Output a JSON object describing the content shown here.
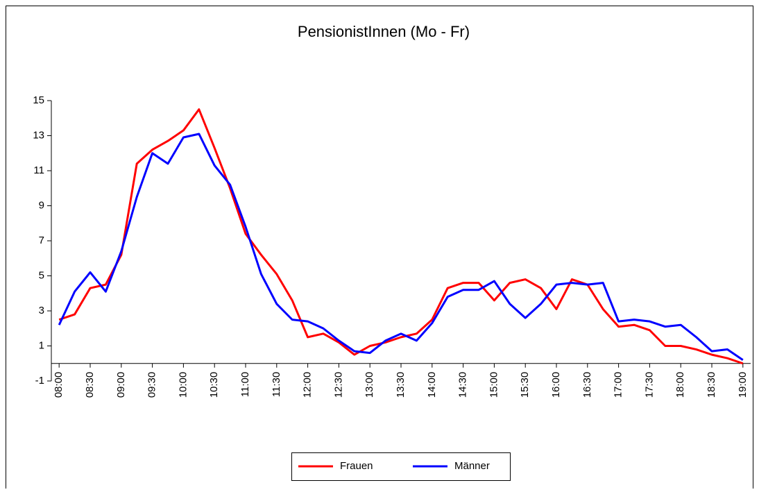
{
  "chart_data": {
    "type": "line",
    "title": "PensionistInnen (Mo - Fr)",
    "categories": [
      "08:00",
      null,
      "08:30",
      null,
      "09:00",
      null,
      "09:30",
      null,
      "10:00",
      null,
      "10:30",
      null,
      "11:00",
      null,
      "11:30",
      null,
      "12:00",
      null,
      "12:30",
      null,
      "13:00",
      null,
      "13:30",
      null,
      "14:00",
      null,
      "14:30",
      null,
      "15:00",
      null,
      "15:30",
      null,
      "16:00",
      null,
      "16:30",
      null,
      "17:00",
      null,
      "17:30",
      null,
      "18:00",
      null,
      "18:30",
      null,
      "19:00"
    ],
    "series": [
      {
        "name": "Frauen",
        "color": "#ff0000",
        "values": [
          2.5,
          2.8,
          4.3,
          4.5,
          6.2,
          11.4,
          12.2,
          12.7,
          13.3,
          14.5,
          12.3,
          10.0,
          7.4,
          6.2,
          5.1,
          3.6,
          1.5,
          1.7,
          1.2,
          0.5,
          1.0,
          1.2,
          1.5,
          1.7,
          2.5,
          4.3,
          4.6,
          4.6,
          3.6,
          4.6,
          4.8,
          4.3,
          3.1,
          4.8,
          4.5,
          3.1,
          2.1,
          2.2,
          1.9,
          1.0,
          1.0,
          0.8,
          0.5,
          0.3,
          0.0
        ]
      },
      {
        "name": "Männer",
        "color": "#0000ff",
        "values": [
          2.2,
          4.1,
          5.2,
          4.1,
          6.4,
          9.5,
          12.0,
          11.4,
          12.9,
          13.1,
          11.3,
          10.2,
          7.8,
          5.1,
          3.4,
          2.5,
          2.4,
          2.0,
          1.3,
          0.7,
          0.6,
          1.3,
          1.7,
          1.3,
          2.3,
          3.8,
          4.2,
          4.2,
          4.7,
          3.4,
          2.6,
          3.4,
          4.5,
          4.6,
          4.5,
          4.6,
          2.4,
          2.5,
          2.4,
          2.1,
          2.2,
          1.5,
          0.7,
          0.8,
          0.2
        ]
      }
    ],
    "ylim": [
      -1,
      15
    ],
    "yticks": [
      -1,
      1,
      3,
      5,
      7,
      9,
      11,
      13,
      15
    ],
    "legend": "bottom"
  }
}
